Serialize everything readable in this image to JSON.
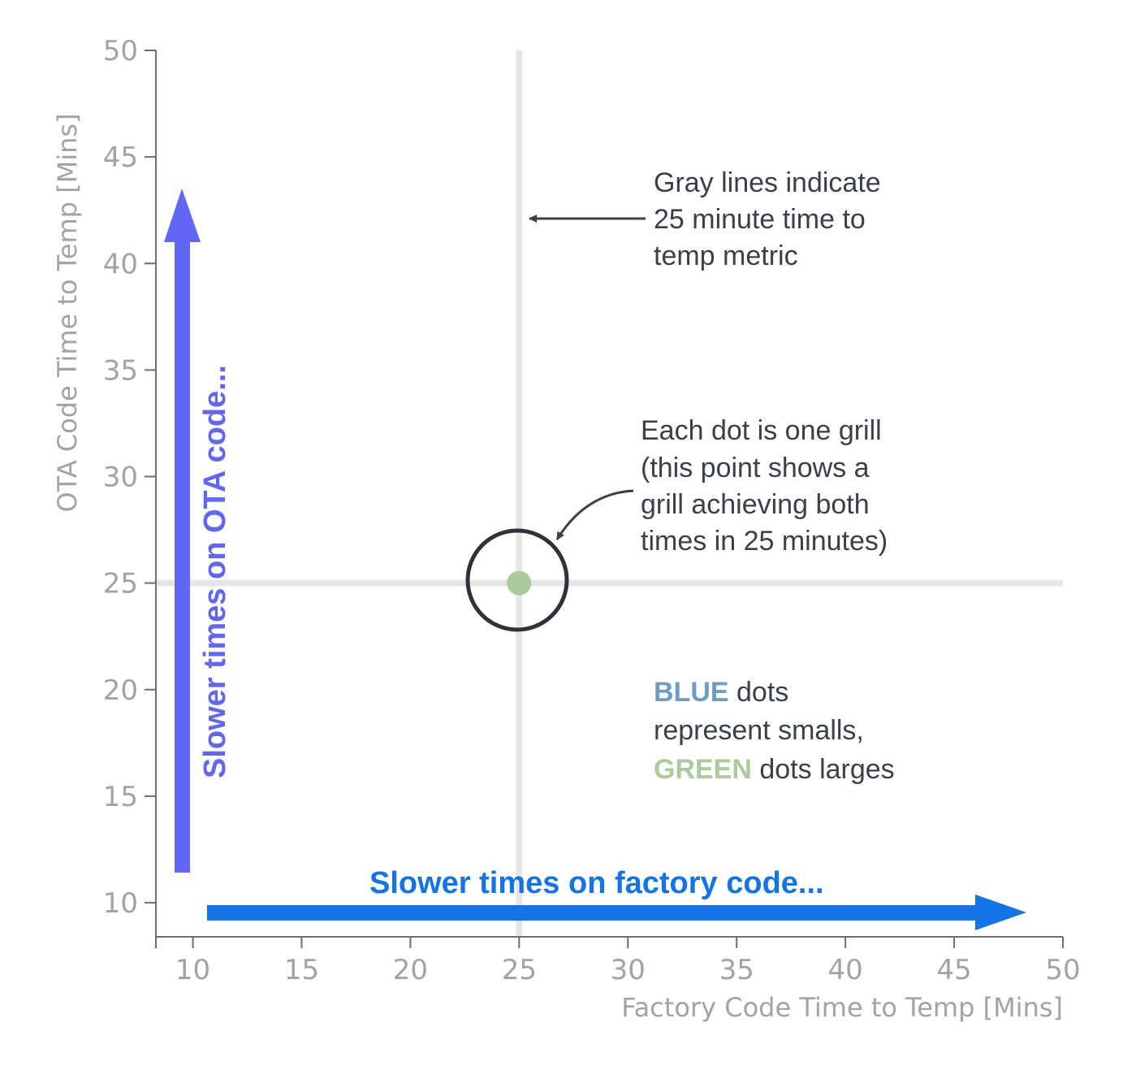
{
  "chart_data": {
    "type": "scatter",
    "xlabel": "Factory Code Time to Temp [Mins]",
    "ylabel": "OTA Code Time to Temp [Mins]",
    "xlim": [
      8.3,
      50
    ],
    "ylim": [
      8.4,
      50
    ],
    "x_ticks": [
      10,
      15,
      20,
      25,
      30,
      35,
      40,
      45,
      50
    ],
    "y_ticks": [
      10,
      15,
      20,
      25,
      30,
      35,
      40,
      45,
      50
    ],
    "reference_lines": {
      "x": 25,
      "y": 25,
      "color": "#e6e6e6"
    },
    "series": [
      {
        "color": "#a9cc9a",
        "points": [
          {
            "x": 25,
            "y": 25
          }
        ]
      }
    ],
    "annotations": {
      "gray_lines_note": [
        "Gray lines indicate",
        "25 minute time to",
        "temp metric"
      ],
      "dot_note": [
        "Each dot is one grill",
        "(this point shows a",
        "grill achieving both",
        "times in 25 minutes)"
      ],
      "legend_note": {
        "line1_word": "BLUE",
        "line1_rest": " dots",
        "line2": "represent smalls,",
        "line3_word": "GREEN",
        "line3_rest": " dots larges"
      },
      "vertical_arrow_label": "Slower times on OTA code...",
      "horizontal_arrow_label": "Slower times on factory code..."
    },
    "colors": {
      "blue_word": "#6f9cc4",
      "green_word": "#a9cc9a",
      "vertical_arrow": "#6166f5",
      "horizontal_arrow": "#1473e6",
      "note_text": "#3a3f4a",
      "circle": "#2d333d"
    }
  }
}
